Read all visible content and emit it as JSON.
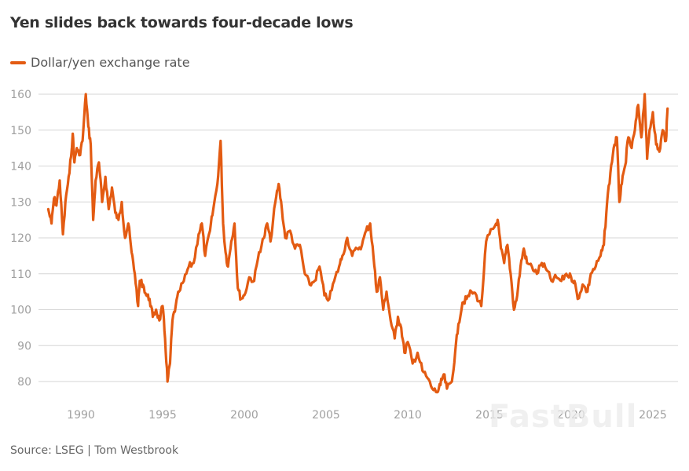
{
  "title": "Yen slides back towards four-decade lows",
  "source": "Source: LSEG | Tom Westbrook",
  "watermark": "FastBull",
  "chart_data": {
    "type": "line",
    "title": "Yen slides back towards four-decade lows",
    "xlabel": "",
    "ylabel": "",
    "legend": {
      "placement": "top-left",
      "entries": [
        "Dollar/yen exchange rate"
      ]
    },
    "grid": true,
    "xlim": [
      1988.0,
      2026.0
    ],
    "ylim": [
      76,
      162
    ],
    "yticks": [
      80,
      90,
      100,
      110,
      120,
      130,
      140,
      150,
      160
    ],
    "xticks": [
      1990,
      1995,
      2000,
      2005,
      2010,
      2015,
      2020,
      2025
    ],
    "series": [
      {
        "name": "Dollar/yen exchange rate",
        "color": "#e35b12",
        "x": [
          1988.0,
          1988.2,
          1988.35,
          1988.5,
          1988.7,
          1988.9,
          1989.1,
          1989.3,
          1989.5,
          1989.6,
          1989.75,
          1989.9,
          1990.1,
          1990.3,
          1990.45,
          1990.6,
          1990.75,
          1990.9,
          1991.1,
          1991.3,
          1991.5,
          1991.7,
          1991.9,
          1992.1,
          1992.3,
          1992.5,
          1992.7,
          1992.9,
          1993.1,
          1993.3,
          1993.5,
          1993.6,
          1993.8,
          1994.0,
          1994.2,
          1994.4,
          1994.6,
          1994.8,
          1995.0,
          1995.15,
          1995.3,
          1995.45,
          1995.6,
          1995.8,
          1996.0,
          1996.3,
          1996.6,
          1996.9,
          1997.2,
          1997.4,
          1997.6,
          1997.9,
          1998.1,
          1998.35,
          1998.55,
          1998.7,
          1998.85,
          1999.0,
          1999.2,
          1999.4,
          1999.6,
          1999.8,
          2000.0,
          2000.3,
          2000.6,
          2000.9,
          2001.2,
          2001.4,
          2001.6,
          2001.9,
          2002.1,
          2002.3,
          2002.5,
          2002.8,
          2003.1,
          2003.4,
          2003.7,
          2004.0,
          2004.3,
          2004.6,
          2004.9,
          2005.2,
          2005.5,
          2005.8,
          2006.0,
          2006.3,
          2006.6,
          2006.9,
          2007.2,
          2007.45,
          2007.7,
          2007.9,
          2008.1,
          2008.3,
          2008.5,
          2008.7,
          2008.95,
          2009.2,
          2009.4,
          2009.6,
          2009.8,
          2010.0,
          2010.3,
          2010.6,
          2010.9,
          2011.2,
          2011.5,
          2011.8,
          2012.0,
          2012.2,
          2012.4,
          2012.7,
          2012.9,
          2013.1,
          2013.35,
          2013.6,
          2013.9,
          2014.2,
          2014.5,
          2014.8,
          2015.0,
          2015.3,
          2015.5,
          2015.7,
          2015.9,
          2016.1,
          2016.3,
          2016.5,
          2016.7,
          2016.9,
          2017.1,
          2017.3,
          2017.6,
          2017.9,
          2018.2,
          2018.5,
          2018.8,
          2019.1,
          2019.4,
          2019.7,
          2020.0,
          2020.2,
          2020.4,
          2020.7,
          2021.0,
          2021.2,
          2021.5,
          2021.8,
          2022.0,
          2022.2,
          2022.4,
          2022.6,
          2022.8,
          2022.95,
          2023.1,
          2023.3,
          2023.5,
          2023.7,
          2023.9,
          2024.1,
          2024.3,
          2024.5,
          2024.65,
          2024.8,
          2025.0,
          2025.2,
          2025.4,
          2025.6,
          2025.8,
          2025.9
        ],
        "y": [
          128,
          124,
          131,
          129,
          136,
          121,
          132,
          138,
          149,
          141,
          145,
          143,
          147,
          160,
          151,
          146,
          125,
          136,
          141,
          130,
          137,
          128,
          134,
          127,
          125,
          130,
          120,
          124,
          116,
          110,
          101,
          108,
          107,
          104,
          103,
          98,
          100,
          97,
          101,
          92,
          80,
          85,
          97,
          101,
          105,
          108,
          112,
          113,
          121,
          124,
          115,
          122,
          128,
          135,
          147,
          124,
          116,
          112,
          119,
          124,
          106,
          103,
          104,
          109,
          108,
          116,
          120,
          124,
          119,
          130,
          135,
          128,
          120,
          122,
          117,
          118,
          110,
          107,
          108,
          112,
          104,
          103,
          108,
          112,
          115,
          120,
          115,
          117,
          118,
          122,
          124,
          115,
          105,
          109,
          100,
          105,
          97,
          92,
          98,
          95,
          88,
          91,
          85,
          88,
          83,
          81,
          78,
          77,
          79,
          82,
          78,
          80,
          88,
          96,
          102,
          103,
          105,
          104,
          101,
          119,
          121,
          123,
          125,
          117,
          113,
          118,
          110,
          100,
          104,
          112,
          117,
          113,
          112,
          110,
          113,
          111,
          108,
          109,
          108,
          110,
          109,
          108,
          103,
          107,
          105,
          110,
          112,
          115,
          118,
          130,
          138,
          145,
          148,
          130,
          135,
          140,
          148,
          145,
          150,
          157,
          148,
          160,
          142,
          150,
          155,
          146,
          144,
          150,
          147,
          156
        ]
      }
    ]
  }
}
